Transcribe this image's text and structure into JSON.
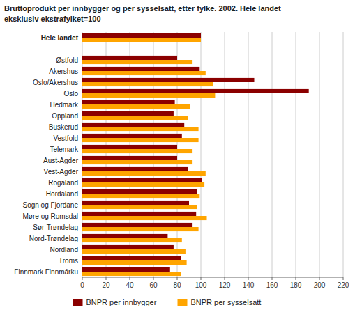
{
  "chart_data": {
    "type": "bar",
    "orientation": "horizontal",
    "title": "Bruttoprodukt per innbygger og per sysselsatt, etter fylke. 2002. Hele landet",
    "subtitle": "eksklusiv ekstrafylket=100",
    "categories": [
      "Hele landet",
      null,
      "Østfold",
      "Akershus",
      "Oslo/Akershus",
      "Oslo",
      "Hedmark",
      "Oppland",
      "Buskerud",
      "Vestfold",
      "Telemark",
      "Aust-Agder",
      "Vest-Agder",
      "Rogaland",
      "Hordaland",
      "Sogn og Fjordane",
      "Møre og Romsdal",
      "Sør-Trøndelag",
      "Nord-Trøndelag",
      "Nordland",
      "Troms",
      "Finnmark Finnmárku"
    ],
    "series": [
      {
        "name": "BNPR per innbygger",
        "color": "#8B0000",
        "values": [
          100,
          null,
          80,
          99,
          145,
          191,
          78,
          77,
          86,
          84,
          80,
          80,
          89,
          101,
          97,
          90,
          96,
          93,
          72,
          77,
          83,
          74
        ]
      },
      {
        "name": "BNPR per sysselsatt",
        "color": "#FFA500",
        "values": [
          100,
          null,
          93,
          104,
          110,
          112,
          91,
          89,
          98,
          98,
          93,
          93,
          104,
          103,
          99,
          97,
          105,
          98,
          84,
          87,
          88,
          83
        ]
      }
    ],
    "xlim": [
      0,
      220
    ],
    "xticks": [
      0,
      20,
      40,
      60,
      80,
      100,
      120,
      140,
      160,
      180,
      200,
      220
    ],
    "grid": true,
    "legend": "bottom"
  }
}
